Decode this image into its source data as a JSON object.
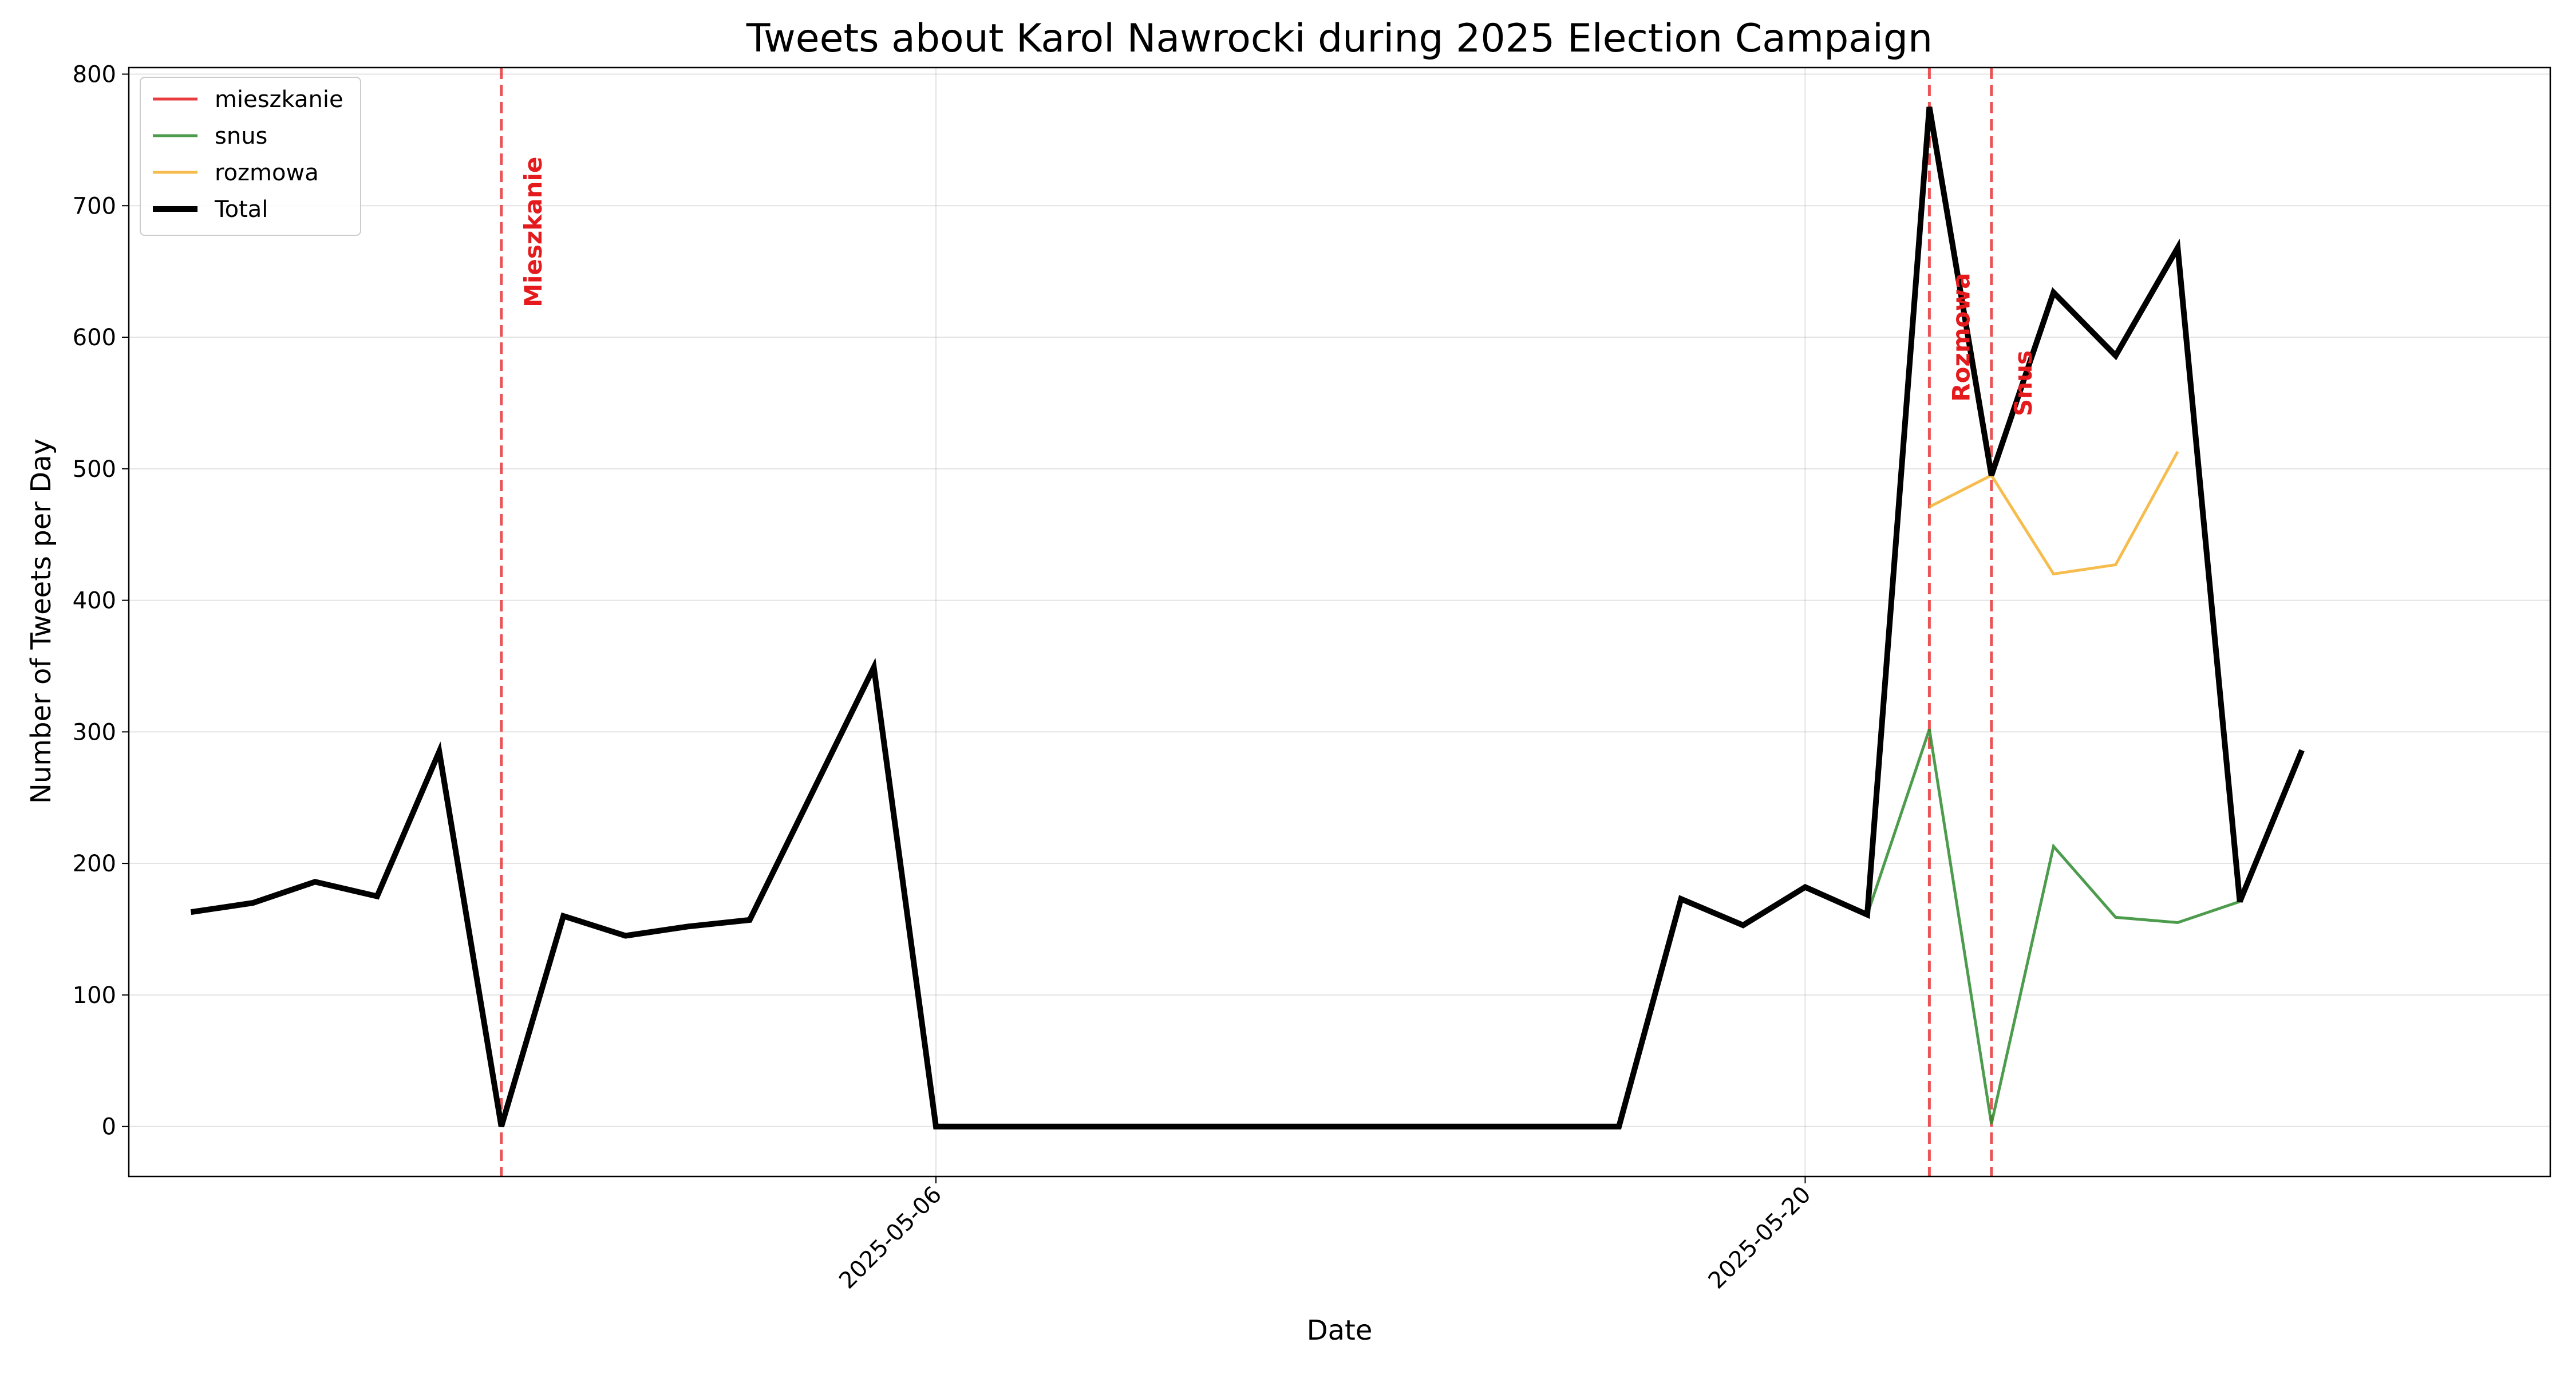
{
  "chart_data": {
    "type": "line",
    "title": "Tweets about Karol Nawrocki during 2025 Election Campaign",
    "xlabel": "Date",
    "ylabel": "Number of Tweets per Day",
    "x_axis": {
      "type": "date",
      "range": [
        "2025-04-23",
        "2025-06-01"
      ],
      "ticks": [
        "2025-05-06",
        "2025-05-20"
      ]
    },
    "y_axis": {
      "range": [
        -38,
        805
      ],
      "ticks": [
        0,
        100,
        200,
        300,
        400,
        500,
        600,
        700,
        800
      ]
    },
    "grid": true,
    "legend": {
      "placement": "top-left",
      "entries": [
        "mieszkanie",
        "snus",
        "rozmowa",
        "Total"
      ]
    },
    "series": [
      {
        "name": "mieszkanie",
        "color": "#e41a1c",
        "points": []
      },
      {
        "name": "snus",
        "color": "#2e8b2e",
        "points": [
          [
            "2025-05-21",
            161
          ],
          [
            "2025-05-22",
            302
          ],
          [
            "2025-05-23",
            2
          ],
          [
            "2025-05-24",
            213
          ],
          [
            "2025-05-25",
            159
          ],
          [
            "2025-05-26",
            155
          ],
          [
            "2025-05-27",
            171
          ]
        ]
      },
      {
        "name": "rozmowa",
        "color": "#f5b02e",
        "points": [
          [
            "2025-05-22",
            471
          ],
          [
            "2025-05-23",
            495
          ],
          [
            "2025-05-24",
            420
          ],
          [
            "2025-05-25",
            427
          ],
          [
            "2025-05-26",
            513
          ]
        ]
      },
      {
        "name": "Total",
        "color": "#000000",
        "points": [
          [
            "2025-04-24",
            163
          ],
          [
            "2025-04-25",
            170
          ],
          [
            "2025-04-26",
            186
          ],
          [
            "2025-04-27",
            175
          ],
          [
            "2025-04-28",
            285
          ],
          [
            "2025-04-29",
            0
          ],
          [
            "2025-04-30",
            160
          ],
          [
            "2025-05-01",
            145
          ],
          [
            "2025-05-02",
            152
          ],
          [
            "2025-05-03",
            157
          ],
          [
            "2025-05-05",
            349
          ],
          [
            "2025-05-06",
            0
          ],
          [
            "2025-05-17",
            0
          ],
          [
            "2025-05-18",
            173
          ],
          [
            "2025-05-19",
            153
          ],
          [
            "2025-05-20",
            182
          ],
          [
            "2025-05-21",
            161
          ],
          [
            "2025-05-22",
            775
          ],
          [
            "2025-05-23",
            495
          ],
          [
            "2025-05-24",
            634
          ],
          [
            "2025-05-25",
            586
          ],
          [
            "2025-05-26",
            668
          ],
          [
            "2025-05-27",
            171
          ],
          [
            "2025-05-28",
            286
          ]
        ]
      }
    ],
    "events": [
      {
        "label": "Mieszkanie",
        "date": "2025-04-29",
        "label_y": 680,
        "color": "#e41a1c"
      },
      {
        "label": "Rozmowa",
        "date": "2025-05-22",
        "label_y": 600,
        "color": "#e41a1c"
      },
      {
        "label": "Snus",
        "date": "2025-05-23",
        "label_y": 565,
        "color": "#e41a1c"
      }
    ]
  }
}
